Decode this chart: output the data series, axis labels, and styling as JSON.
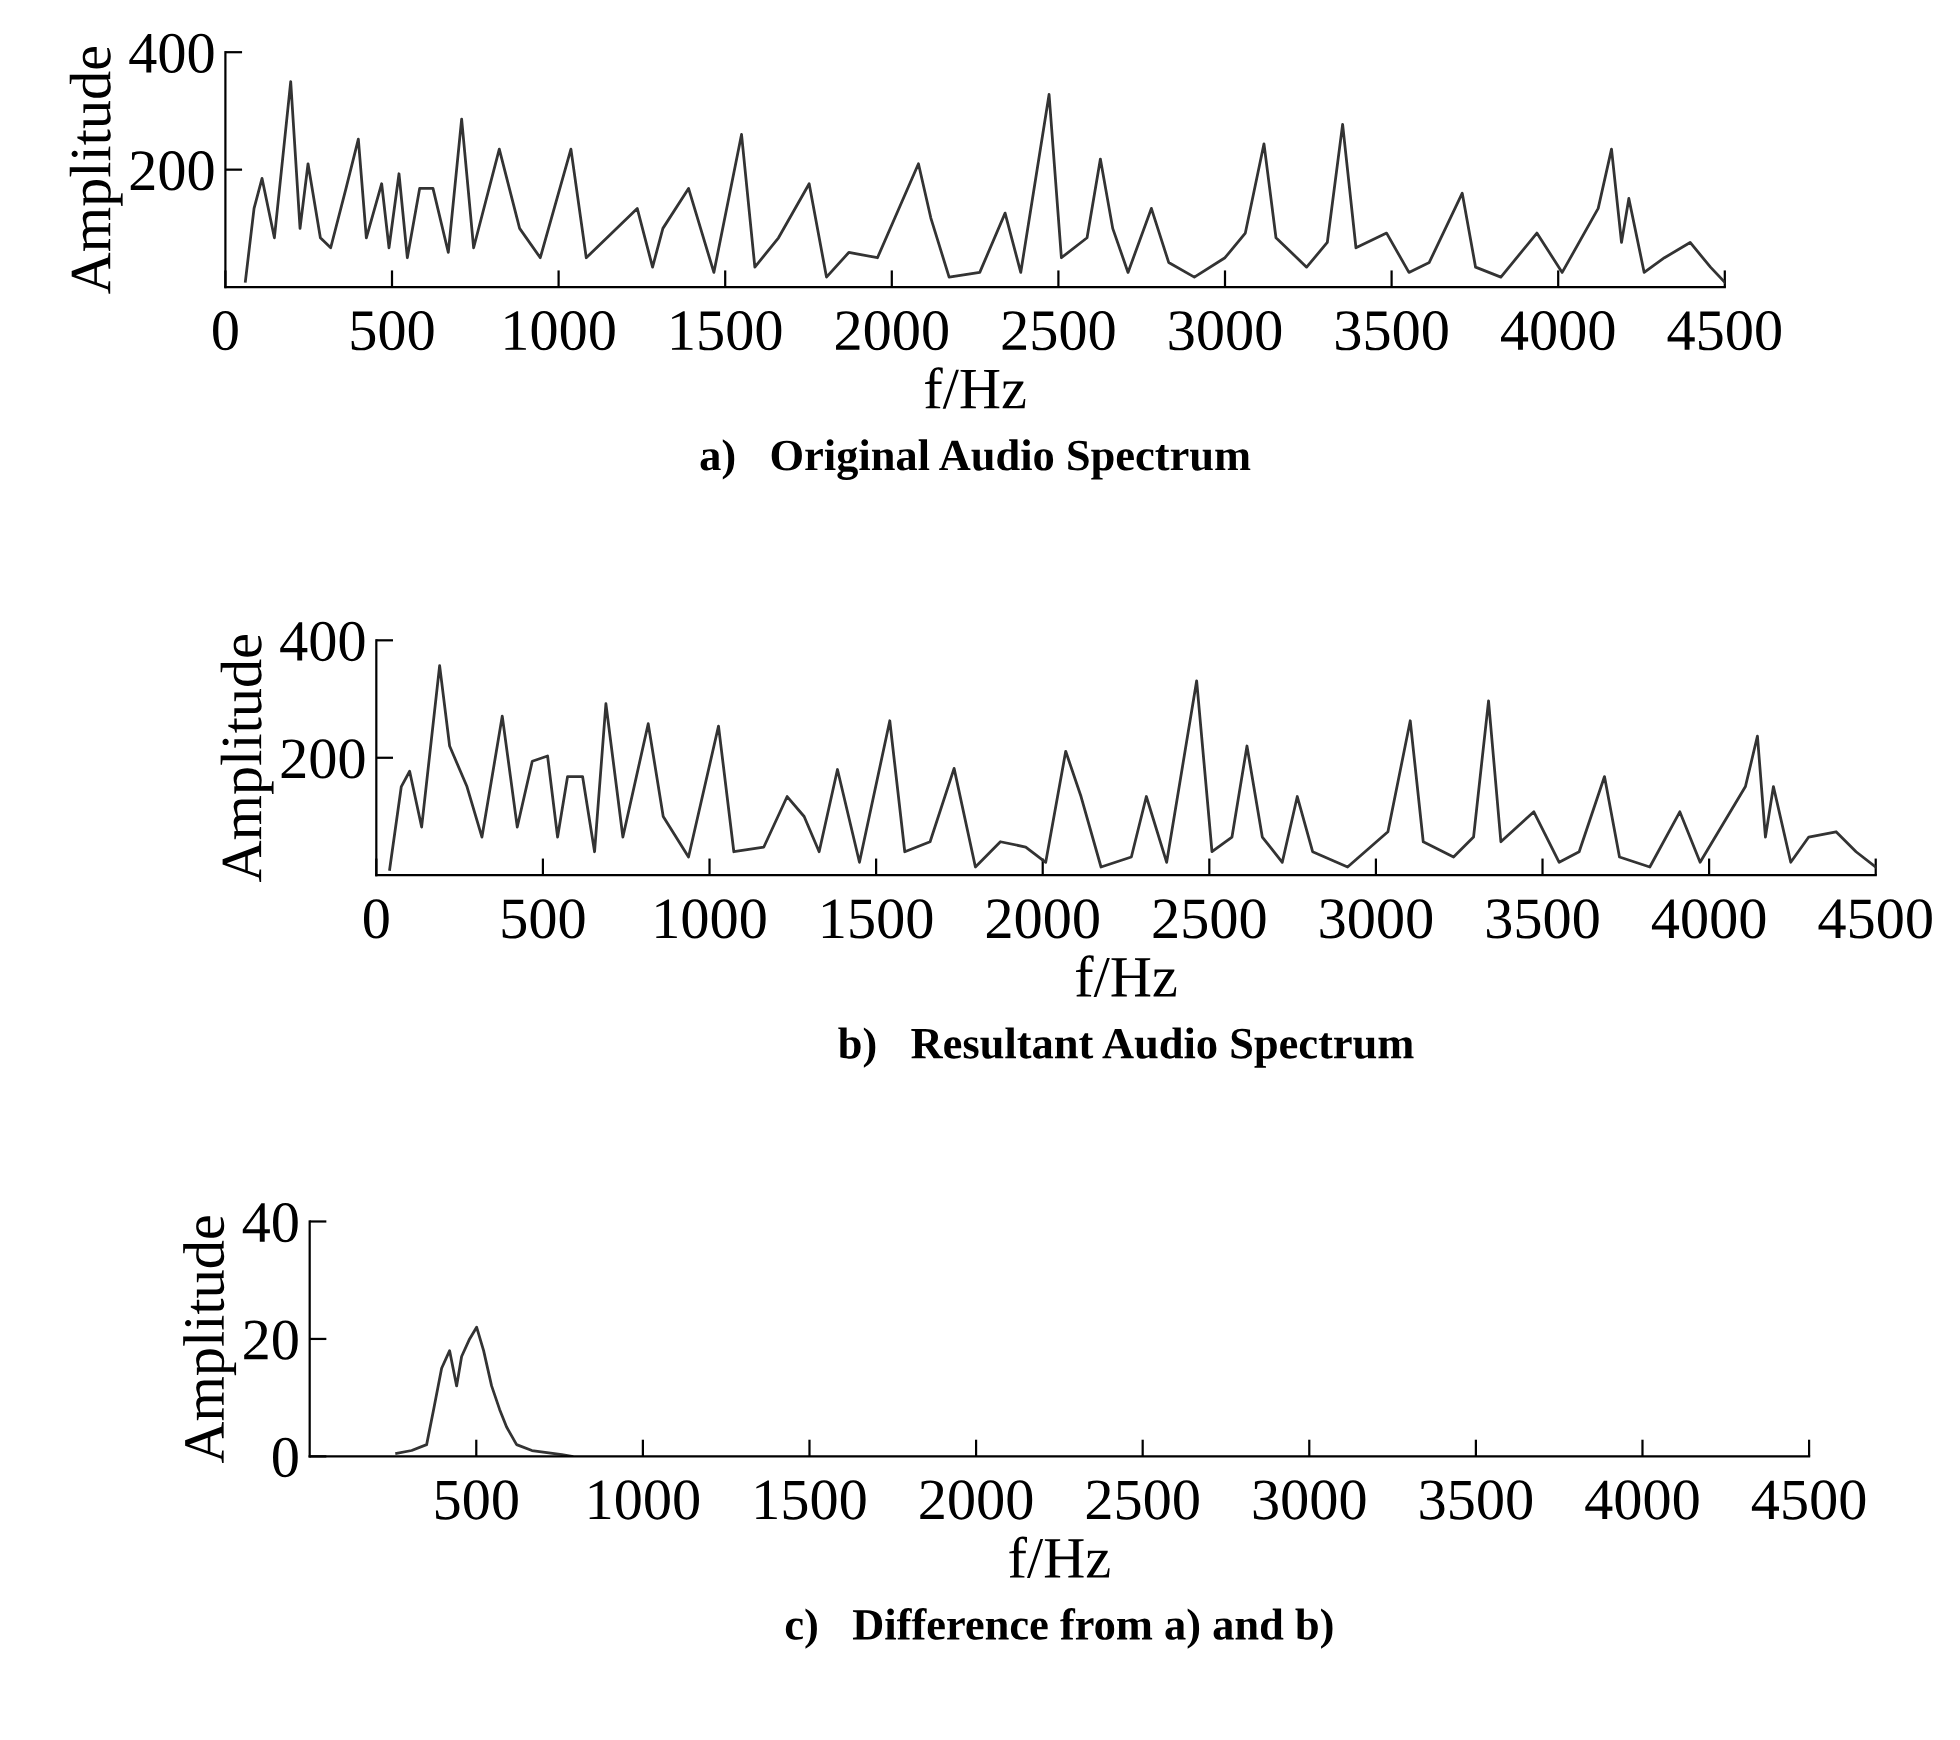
{
  "chart_data": [
    {
      "type": "line",
      "title": "a)   Original Audio Spectrum",
      "xlabel": "f/Hz",
      "ylabel": "Amplitude",
      "xlim": [
        0,
        4500
      ],
      "xticks": [
        0,
        500,
        1000,
        1500,
        2000,
        2500,
        3000,
        3500,
        4000,
        4500
      ],
      "ylim": [
        0,
        400
      ],
      "yticks": [
        200,
        400
      ],
      "grid": false,
      "legend": false,
      "series": [
        {
          "color": "#333333",
          "x": [
            60,
            86,
            110,
            147,
            196,
            224,
            248,
            285,
            316,
            362,
            399,
            423,
            469,
            491,
            521,
            546,
            583,
            623,
            669,
            709,
            745,
            822,
            883,
            945,
            1037,
            1083,
            1160,
            1236,
            1282,
            1313,
            1390,
            1466,
            1549,
            1589,
            1660,
            1752,
            1804,
            1871,
            1957,
            2080,
            2117,
            2172,
            2264,
            2340,
            2387,
            2472,
            2509,
            2586,
            2626,
            2663,
            2709,
            2779,
            2831,
            2908,
            3000,
            3061,
            3117,
            3153,
            3245,
            3307,
            3353,
            3393,
            3485,
            3552,
            3613,
            3712,
            3752,
            3828,
            3936,
            4012,
            4120,
            4160,
            4190,
            4212,
            4258,
            4319,
            4396,
            4457,
            4500
          ],
          "values": [
            10,
            134,
            185,
            84,
            350,
            100,
            210,
            84,
            67,
            168,
            252,
            84,
            176,
            67,
            193,
            50,
            168,
            168,
            59,
            286,
            67,
            235,
            100,
            50,
            235,
            50,
            92,
            134,
            34,
            100,
            168,
            25,
            260,
            34,
            84,
            176,
            17,
            59,
            50,
            210,
            118,
            17,
            25,
            126,
            25,
            328,
            50,
            84,
            218,
            100,
            25,
            134,
            42,
            17,
            50,
            92,
            244,
            84,
            34,
            76,
            277,
            67,
            92,
            25,
            42,
            160,
            34,
            17,
            92,
            25,
            134,
            235,
            76,
            151,
            25,
            50,
            76,
            34,
            8
          ]
        }
      ]
    },
    {
      "type": "line",
      "title": "b)   Resultant Audio Spectrum",
      "xlabel": "f/Hz",
      "ylabel": "Amplitude",
      "xlim": [
        0,
        4500
      ],
      "xticks": [
        0,
        500,
        1000,
        1500,
        2000,
        2500,
        3000,
        3500,
        4000,
        4500
      ],
      "ylim": [
        0,
        400
      ],
      "yticks": [
        200,
        400
      ],
      "grid": false,
      "legend": false,
      "series": [
        {
          "color": "#333333",
          "x": [
            40,
            75,
            100,
            136,
            190,
            220,
            272,
            317,
            378,
            423,
            468,
            514,
            544,
            574,
            619,
            655,
            689,
            740,
            816,
            861,
            937,
            1027,
            1073,
            1163,
            1233,
            1284,
            1329,
            1384,
            1450,
            1541,
            1586,
            1662,
            1734,
            1798,
            1873,
            1949,
            2009,
            2069,
            2115,
            2175,
            2266,
            2311,
            2372,
            2462,
            2508,
            2568,
            2613,
            2659,
            2719,
            2764,
            2810,
            2915,
            3036,
            3103,
            3142,
            3233,
            3293,
            3338,
            3375,
            3474,
            3550,
            3610,
            3686,
            3731,
            3822,
            3912,
            3973,
            4109,
            4145,
            4169,
            4193,
            4245,
            4299,
            4381,
            4441,
            4500
          ],
          "values": [
            10,
            151,
            177,
            82,
            357,
            220,
            151,
            65,
            271,
            82,
            194,
            203,
            65,
            168,
            168,
            40,
            292,
            65,
            258,
            100,
            31,
            254,
            40,
            48,
            134,
            100,
            40,
            180,
            22,
            263,
            40,
            57,
            182,
            14,
            57,
            48,
            22,
            211,
            134,
            14,
            31,
            134,
            22,
            331,
            40,
            65,
            220,
            65,
            22,
            134,
            40,
            14,
            74,
            263,
            57,
            31,
            65,
            297,
            57,
            108,
            22,
            40,
            168,
            31,
            14,
            108,
            22,
            151,
            237,
            65,
            151,
            22,
            65,
            74,
            40,
            14
          ]
        }
      ]
    },
    {
      "type": "line",
      "title": "c)   Difference from a) and b)",
      "xlabel": "f/Hz",
      "ylabel": "Amplitude",
      "xlim": [
        0,
        4500
      ],
      "xticks": [
        500,
        1000,
        1500,
        2000,
        2500,
        3000,
        3500,
        4000,
        4500
      ],
      "ylim": [
        0,
        40
      ],
      "yticks": [
        0,
        20,
        40
      ],
      "grid": false,
      "legend": false,
      "series": [
        {
          "color": "#333333",
          "x": [
            261,
            306,
            351,
            372,
            396,
            420,
            441,
            456,
            480,
            501,
            522,
            546,
            570,
            591,
            621,
            667,
            757,
            787
          ],
          "values": [
            0.5,
            1,
            2,
            8,
            15,
            18,
            12,
            17,
            20,
            22,
            18,
            12,
            8,
            5,
            2,
            1,
            0.3,
            0
          ]
        }
      ]
    }
  ]
}
